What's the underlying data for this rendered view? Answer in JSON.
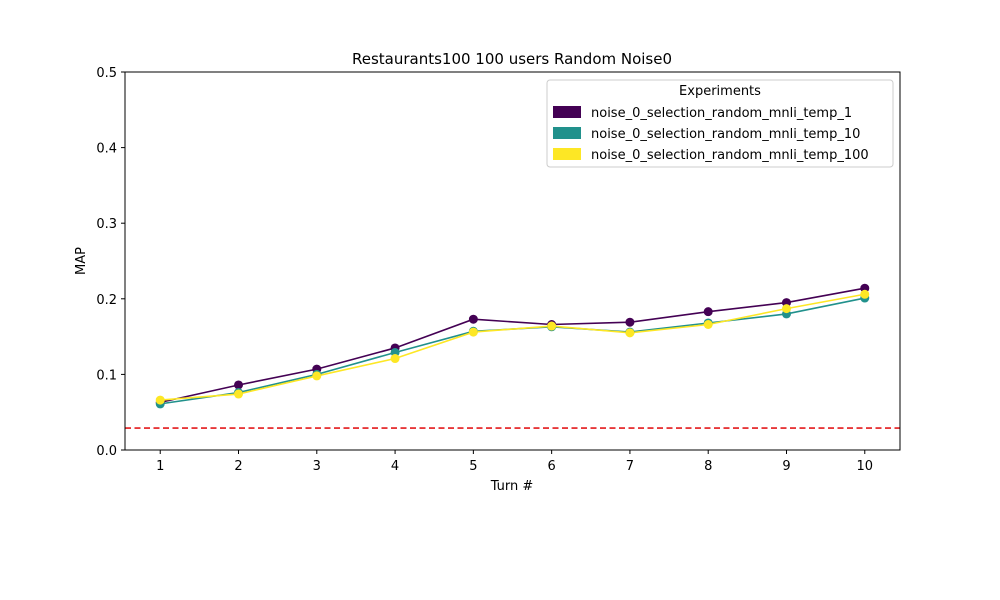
{
  "chart_data": {
    "type": "line",
    "title": "Restaurants100 100 users Random Noise0",
    "xlabel": "Turn #",
    "ylabel": "MAP",
    "x": [
      1,
      2,
      3,
      4,
      5,
      6,
      7,
      8,
      9,
      10
    ],
    "xlim": [
      0.55,
      10.45
    ],
    "ylim": [
      0,
      0.5
    ],
    "yticks": [
      "0.0",
      "0.1",
      "0.2",
      "0.3",
      "0.4",
      "0.5"
    ],
    "grid": false,
    "legend": {
      "title": "Experiments",
      "position": "top-right"
    },
    "series": [
      {
        "name": "noise_0_selection_random_mnli_temp_1",
        "color": "#440154",
        "values": [
          0.063,
          0.086,
          0.107,
          0.135,
          0.173,
          0.166,
          0.169,
          0.183,
          0.195,
          0.214
        ]
      },
      {
        "name": "noise_0_selection_random_mnli_temp_10",
        "color": "#21918c",
        "values": [
          0.061,
          0.076,
          0.1,
          0.129,
          0.157,
          0.163,
          0.156,
          0.168,
          0.18,
          0.201
        ]
      },
      {
        "name": "noise_0_selection_random_mnli_temp_100",
        "color": "#fde725",
        "values": [
          0.066,
          0.074,
          0.098,
          0.121,
          0.156,
          0.164,
          0.155,
          0.166,
          0.187,
          0.206
        ]
      }
    ],
    "reference_line": {
      "y": 0.029,
      "color": "#e41a1c",
      "style": "dashed"
    }
  }
}
